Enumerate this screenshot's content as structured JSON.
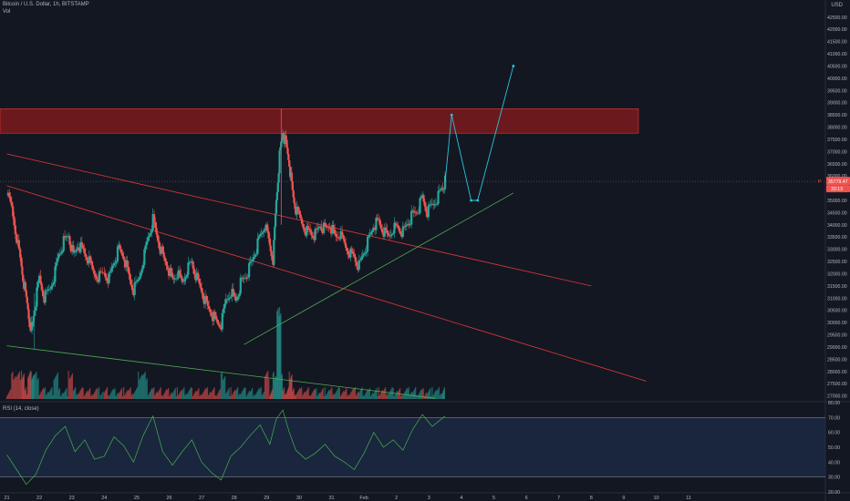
{
  "header": {
    "symbol": "Bitcoin / U.S. Dollar, 1h, BITSTAMP",
    "volume_label": "Vol",
    "currency": "USD"
  },
  "rsi_panel": {
    "label": "RSI (14, close)",
    "levels": [
      "80.00",
      "70.00",
      "60.00",
      "50.00",
      "40.00",
      "30.00",
      "20.00"
    ]
  },
  "price_badges": {
    "last_price": "35779.47",
    "countdown": "33:13",
    "marker": "P"
  },
  "colors": {
    "background": "#131722",
    "bull": "#26a69a",
    "bear": "#ef5350",
    "resistance_zone": "#b71c1c",
    "support_line": "#4caf50",
    "resistance_line": "#e53935",
    "projection": "#26c6da",
    "rsi_line": "#4caf50",
    "rsi_band": "#1e3050"
  },
  "chart_data": {
    "type": "candlestick",
    "title": "Bitcoin / U.S. Dollar, 1h, BITSTAMP",
    "y_ticks": [
      "42500.00",
      "42000.00",
      "41500.00",
      "41000.00",
      "40500.00",
      "40000.00",
      "39500.00",
      "39000.00",
      "38500.00",
      "38000.00",
      "37500.00",
      "37000.00",
      "36500.00",
      "36000.00",
      "35500.00",
      "35000.00",
      "34500.00",
      "34000.00",
      "33500.00",
      "33000.00",
      "32500.00",
      "32000.00",
      "31500.00",
      "31000.00",
      "30500.00",
      "30000.00",
      "29500.00",
      "29000.00",
      "28500.00",
      "28000.00",
      "27500.00",
      "27000.00"
    ],
    "x_ticks": [
      "21",
      "22",
      "23",
      "24",
      "25",
      "26",
      "27",
      "28",
      "29",
      "30",
      "31",
      "Feb",
      "2",
      "3",
      "4",
      "5",
      "6",
      "7",
      "8",
      "9",
      "10",
      "11"
    ],
    "ylim": [
      26800,
      43200
    ],
    "close_path": [
      [
        21.0,
        35200
      ],
      [
        21.15,
        34700
      ],
      [
        21.3,
        33500
      ],
      [
        21.45,
        32300
      ],
      [
        21.55,
        31400
      ],
      [
        21.65,
        30600
      ],
      [
        21.75,
        29500
      ],
      [
        21.85,
        30600
      ],
      [
        22.0,
        31800
      ],
      [
        22.15,
        31000
      ],
      [
        22.3,
        31300
      ],
      [
        22.45,
        31900
      ],
      [
        22.6,
        32800
      ],
      [
        22.75,
        33300
      ],
      [
        22.9,
        33600
      ],
      [
        23.05,
        32700
      ],
      [
        23.2,
        33200
      ],
      [
        23.35,
        32900
      ],
      [
        23.5,
        32600
      ],
      [
        23.65,
        32100
      ],
      [
        23.8,
        31900
      ],
      [
        24.0,
        32000
      ],
      [
        24.15,
        31800
      ],
      [
        24.3,
        32500
      ],
      [
        24.45,
        33000
      ],
      [
        24.6,
        32700
      ],
      [
        24.75,
        31900
      ],
      [
        24.9,
        31300
      ],
      [
        25.05,
        31700
      ],
      [
        25.2,
        32600
      ],
      [
        25.35,
        33500
      ],
      [
        25.5,
        34200
      ],
      [
        25.65,
        33400
      ],
      [
        25.8,
        32700
      ],
      [
        25.95,
        32300
      ],
      [
        26.1,
        31700
      ],
      [
        26.25,
        32000
      ],
      [
        26.4,
        31600
      ],
      [
        26.55,
        32200
      ],
      [
        26.7,
        32500
      ],
      [
        26.85,
        31800
      ],
      [
        27.0,
        31300
      ],
      [
        27.15,
        30700
      ],
      [
        27.3,
        30400
      ],
      [
        27.45,
        30000
      ],
      [
        27.6,
        29900
      ],
      [
        27.75,
        30900
      ],
      [
        27.9,
        31300
      ],
      [
        28.05,
        30900
      ],
      [
        28.2,
        31600
      ],
      [
        28.35,
        31900
      ],
      [
        28.5,
        32300
      ],
      [
        28.65,
        32900
      ],
      [
        28.8,
        33500
      ],
      [
        28.95,
        34000
      ],
      [
        29.1,
        33100
      ],
      [
        29.2,
        32600
      ],
      [
        29.3,
        35000
      ],
      [
        29.4,
        36800
      ],
      [
        29.5,
        37800
      ],
      [
        29.6,
        37300
      ],
      [
        29.7,
        36500
      ],
      [
        29.8,
        35300
      ],
      [
        29.9,
        34600
      ],
      [
        30.05,
        34200
      ],
      [
        30.2,
        33800
      ],
      [
        30.35,
        33700
      ],
      [
        30.5,
        33600
      ],
      [
        30.65,
        34000
      ],
      [
        30.8,
        33800
      ],
      [
        30.95,
        34000
      ],
      [
        31.1,
        33500
      ],
      [
        31.25,
        33600
      ],
      [
        31.4,
        33200
      ],
      [
        31.55,
        32900
      ],
      [
        31.7,
        32700
      ],
      [
        31.85,
        32300
      ],
      [
        32.0,
        32900
      ],
      [
        32.15,
        33400
      ],
      [
        32.3,
        34000
      ],
      [
        32.45,
        34100
      ],
      [
        32.6,
        33700
      ],
      [
        32.75,
        33500
      ],
      [
        32.9,
        33900
      ],
      [
        33.05,
        33900
      ],
      [
        33.2,
        33700
      ],
      [
        33.35,
        34100
      ],
      [
        33.5,
        34400
      ],
      [
        33.65,
        34600
      ],
      [
        33.8,
        35100
      ],
      [
        33.95,
        34500
      ],
      [
        34.1,
        34800
      ],
      [
        34.25,
        35100
      ],
      [
        34.4,
        35500
      ],
      [
        34.5,
        35780
      ]
    ],
    "projection_path": [
      [
        34.5,
        35780
      ],
      [
        34.7,
        38500
      ],
      [
        35.3,
        35000
      ],
      [
        35.5,
        35000
      ],
      [
        36.6,
        40500
      ]
    ],
    "resistance_zone": {
      "from": 37750,
      "to": 38750
    },
    "lines": [
      {
        "name": "resistance_upper",
        "from": [
          21.0,
          36900
        ],
        "to": [
          39.0,
          31500
        ]
      },
      {
        "name": "resistance_lower",
        "from": [
          21.0,
          35600
        ],
        "to": [
          40.7,
          27600
        ]
      },
      {
        "name": "support",
        "from": [
          28.3,
          29100
        ],
        "to": [
          36.6,
          35300
        ]
      },
      {
        "name": "volume_trend",
        "from": [
          21.0,
          29050
        ],
        "to": [
          34.2,
          26900
        ]
      }
    ],
    "rsi": {
      "ylim": [
        20,
        80
      ],
      "upper_level": 70,
      "lower_level": 30,
      "values": [
        [
          21.0,
          45
        ],
        [
          21.3,
          35
        ],
        [
          21.6,
          25
        ],
        [
          21.9,
          32
        ],
        [
          22.2,
          48
        ],
        [
          22.5,
          58
        ],
        [
          22.8,
          64
        ],
        [
          23.1,
          47
        ],
        [
          23.4,
          55
        ],
        [
          23.7,
          42
        ],
        [
          24.0,
          44
        ],
        [
          24.3,
          57
        ],
        [
          24.6,
          51
        ],
        [
          24.9,
          40
        ],
        [
          25.2,
          58
        ],
        [
          25.5,
          71
        ],
        [
          25.8,
          47
        ],
        [
          26.1,
          38
        ],
        [
          26.4,
          47
        ],
        [
          26.7,
          55
        ],
        [
          27.0,
          40
        ],
        [
          27.3,
          33
        ],
        [
          27.6,
          28
        ],
        [
          27.9,
          44
        ],
        [
          28.2,
          50
        ],
        [
          28.5,
          58
        ],
        [
          28.8,
          65
        ],
        [
          29.1,
          52
        ],
        [
          29.3,
          69
        ],
        [
          29.5,
          75
        ],
        [
          29.7,
          60
        ],
        [
          29.9,
          48
        ],
        [
          30.2,
          42
        ],
        [
          30.5,
          46
        ],
        [
          30.8,
          52
        ],
        [
          31.1,
          44
        ],
        [
          31.4,
          40
        ],
        [
          31.7,
          35
        ],
        [
          32.0,
          46
        ],
        [
          32.3,
          60
        ],
        [
          32.6,
          50
        ],
        [
          32.9,
          55
        ],
        [
          33.2,
          48
        ],
        [
          33.5,
          62
        ],
        [
          33.8,
          72
        ],
        [
          34.1,
          64
        ],
        [
          34.5,
          71
        ]
      ]
    }
  }
}
